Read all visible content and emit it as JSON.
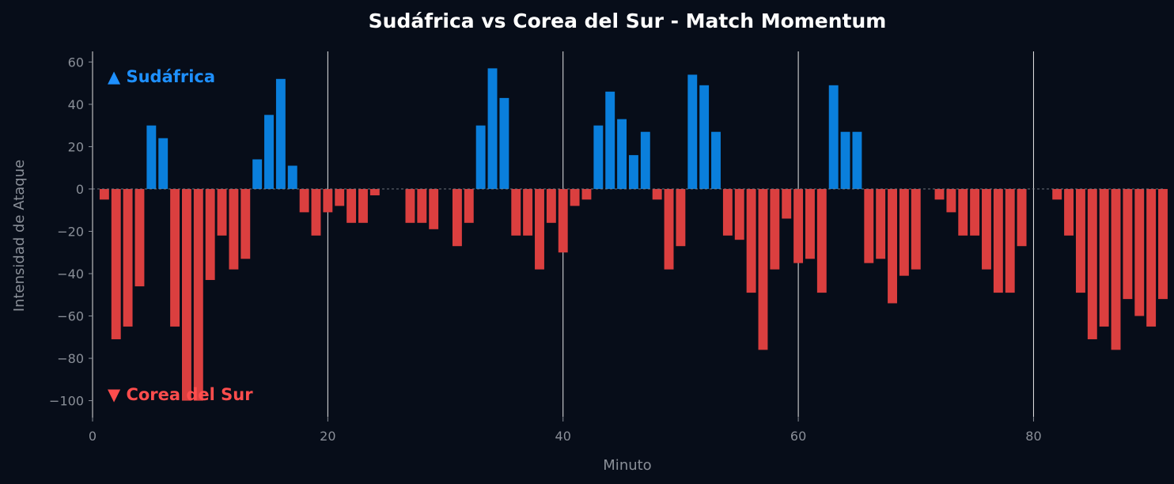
{
  "chart_data": {
    "type": "bar",
    "title": "Sudáfrica vs Corea del Sur - Match Momentum",
    "xlabel": "Minuto",
    "ylabel": "Intensidad de Ataque",
    "xlim": [
      0,
      91
    ],
    "ylim": [
      -108,
      65
    ],
    "x_ticks": [
      0,
      20,
      40,
      60,
      80
    ],
    "y_ticks": [
      60,
      40,
      20,
      0,
      -20,
      -40,
      -60,
      -80,
      -100
    ],
    "y_tick_labels": [
      "60",
      "40",
      "20",
      "0",
      "−20",
      "−40",
      "−60",
      "−80",
      "−100"
    ],
    "period_lines": [
      20,
      40,
      60,
      80
    ],
    "grid": false,
    "x": [
      1,
      2,
      3,
      4,
      5,
      6,
      7,
      8,
      9,
      10,
      11,
      12,
      13,
      14,
      15,
      16,
      17,
      18,
      19,
      20,
      21,
      22,
      23,
      24,
      25,
      26,
      27,
      28,
      29,
      30,
      31,
      32,
      33,
      34,
      35,
      36,
      37,
      38,
      39,
      40,
      41,
      42,
      43,
      44,
      45,
      46,
      47,
      48,
      49,
      50,
      51,
      52,
      53,
      54,
      55,
      56,
      57,
      58,
      59,
      60,
      61,
      62,
      63,
      64,
      65,
      66,
      67,
      68,
      69,
      70,
      71,
      72,
      73,
      74,
      75,
      76,
      77,
      78,
      79,
      80,
      81,
      82,
      83,
      84,
      85,
      86,
      87,
      88,
      89,
      90,
      91
    ],
    "values": [
      -5,
      -71,
      -65,
      -46,
      30,
      24,
      -65,
      -100,
      -100,
      -43,
      -22,
      -38,
      -33,
      14,
      35,
      52,
      11,
      -11,
      -22,
      -11,
      -8,
      -16,
      -16,
      -3,
      0,
      0,
      -16,
      -16,
      -19,
      0,
      -27,
      -16,
      30,
      57,
      43,
      -22,
      -22,
      -38,
      -16,
      -30,
      -8,
      -5,
      30,
      46,
      33,
      16,
      27,
      -5,
      -38,
      -27,
      54,
      49,
      27,
      -22,
      -24,
      -49,
      -76,
      -38,
      -14,
      -35,
      -33,
      -49,
      49,
      27,
      27,
      -35,
      -33,
      -54,
      -41,
      -38,
      0,
      -5,
      -11,
      -22,
      -22,
      -38,
      -49,
      -49,
      -27,
      0,
      0,
      -5,
      -22,
      -49,
      -71,
      -65,
      -76,
      -52,
      -60,
      -65,
      -52
    ],
    "series": [
      {
        "name": "▲ Sudáfrica",
        "sign": "positive",
        "color": "#0a7fdc"
      },
      {
        "name": "▼ Corea del Sur",
        "sign": "negative",
        "color": "#db3f3f"
      }
    ],
    "legend_colors": [
      "#1e90ff",
      "#ff4d4d"
    ],
    "legend_placement": "annotations top-left and bottom-left"
  }
}
